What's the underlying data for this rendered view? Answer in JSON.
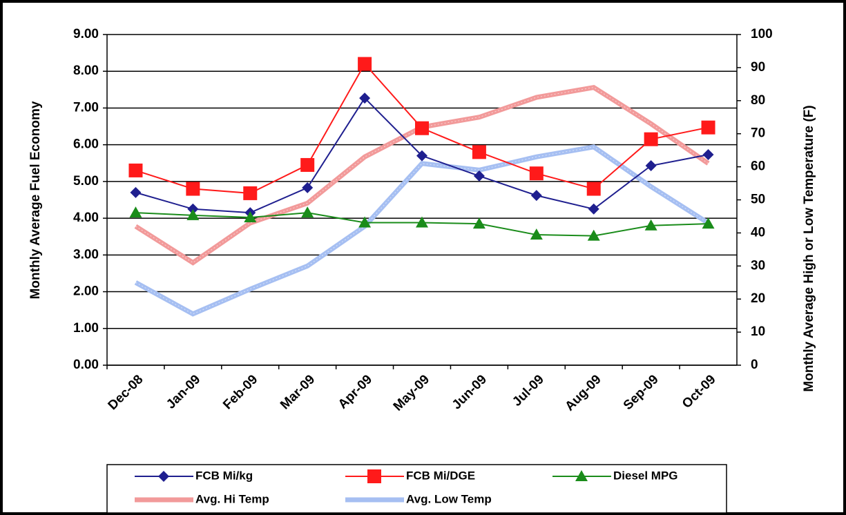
{
  "chart_data": {
    "type": "line",
    "y_axis_label": "Monthly Average Fuel Economy",
    "y2_axis_label": "Monthly Average High or Low Temperature (F)",
    "categories": [
      "Dec-08",
      "Jan-09",
      "Feb-09",
      "Mar-09",
      "Apr-09",
      "May-09",
      "Jun-09",
      "Jul-09",
      "Aug-09",
      "Sep-09",
      "Oct-09"
    ],
    "series": [
      {
        "name": "FCB Mi/kg",
        "color": "#1f1f8f",
        "marker": "diamond",
        "values": [
          4.7,
          4.25,
          4.15,
          4.83,
          7.27,
          5.7,
          5.15,
          4.62,
          4.25,
          5.43,
          5.73
        ]
      },
      {
        "name": "FCB Mi/DGE",
        "color": "#ff1a1a",
        "marker": "square",
        "values": [
          5.3,
          4.8,
          4.68,
          5.45,
          8.2,
          6.45,
          5.8,
          5.22,
          4.8,
          6.15,
          6.47
        ]
      },
      {
        "name": "Diesel MPG",
        "color": "#1a8c1a",
        "marker": "triangle",
        "values": [
          4.15,
          4.08,
          4.02,
          4.15,
          3.88,
          3.88,
          3.85,
          3.55,
          3.52,
          3.8,
          3.85
        ]
      },
      {
        "name": "Avg. Hi Temp",
        "color": "#f29a9a",
        "marker": "none",
        "axis": "y2",
        "values": [
          42,
          31,
          43,
          49,
          63,
          72,
          75,
          81,
          84,
          73,
          61
        ]
      },
      {
        "name": "Avg. Low Temp",
        "color": "#a6bff2",
        "marker": "none",
        "axis": "y2",
        "values": [
          25,
          15.5,
          23,
          30,
          42,
          61,
          59,
          63,
          66,
          54,
          43
        ]
      }
    ],
    "ylim": [
      0,
      9
    ],
    "yticks": [
      {
        "value": 0,
        "label": "0.00"
      },
      {
        "value": 1,
        "label": "1.00"
      },
      {
        "value": 2,
        "label": "2.00"
      },
      {
        "value": 3,
        "label": "3.00"
      },
      {
        "value": 4,
        "label": "4.00"
      },
      {
        "value": 5,
        "label": "5.00"
      },
      {
        "value": 6,
        "label": "6.00"
      },
      {
        "value": 7,
        "label": "7.00"
      },
      {
        "value": 8,
        "label": "8.00"
      },
      {
        "value": 9,
        "label": "9.00"
      }
    ],
    "y2lim": [
      0,
      100
    ],
    "y2ticks": [
      0,
      10,
      20,
      30,
      40,
      50,
      60,
      70,
      80,
      90,
      100
    ],
    "grid": true
  }
}
